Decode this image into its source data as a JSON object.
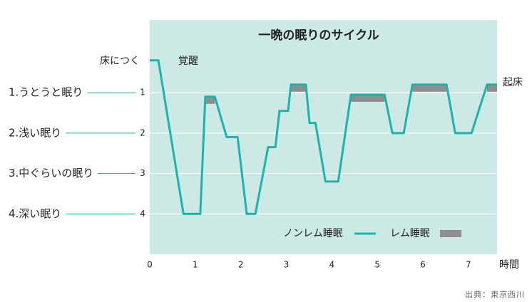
{
  "chart_data": {
    "type": "line",
    "title": "一晩の眠りのサイクル",
    "x_label": "時間",
    "xlim": [
      0,
      7.63
    ],
    "ylim": [
      -0.8,
      5
    ],
    "y_inverted": true,
    "xticks": [
      0,
      1,
      2,
      3,
      4,
      5,
      6,
      7
    ],
    "yticks": [
      1,
      2,
      3,
      4
    ],
    "stage_labels": [
      "1.うとうと眠り",
      "2.浅い眠り",
      "3.中ぐらいの眠り",
      "4.深い眠り"
    ],
    "grid": true,
    "series": [
      {
        "name": "ノンレム睡眠",
        "color": "#1ab3ae",
        "x": [
          0,
          0.19,
          0.74,
          1.11,
          1.22,
          1.43,
          1.69,
          1.93,
          2.13,
          2.32,
          2.6,
          2.76,
          2.85,
          3.04,
          3.1,
          3.43,
          3.51,
          3.64,
          3.86,
          4.14,
          4.42,
          5.16,
          5.33,
          5.58,
          5.77,
          6.52,
          6.71,
          7.07,
          7.41,
          7.63
        ],
        "values": [
          0.2,
          0.2,
          4,
          4,
          1.1,
          1.1,
          2.1,
          2.1,
          4,
          4,
          2.35,
          2.35,
          1.45,
          1.45,
          0.8,
          0.8,
          1.75,
          1.75,
          3.2,
          3.2,
          1.05,
          1.05,
          2,
          2,
          0.8,
          0.8,
          2,
          2,
          0.8,
          0.8
        ]
      }
    ],
    "rem": {
      "name": "レム睡眠",
      "color": "#8e8e8e",
      "start": [
        1.22,
        3.1,
        4.42,
        5.77,
        7.41
      ],
      "end": [
        1.43,
        3.43,
        5.16,
        6.52,
        7.63
      ],
      "level": [
        1.1,
        0.8,
        1.05,
        0.8,
        0.8
      ]
    },
    "annotations": {
      "bedtime": "床につく",
      "awake": "覚醒",
      "wake": "起床"
    },
    "source": "出典：東京西川"
  }
}
